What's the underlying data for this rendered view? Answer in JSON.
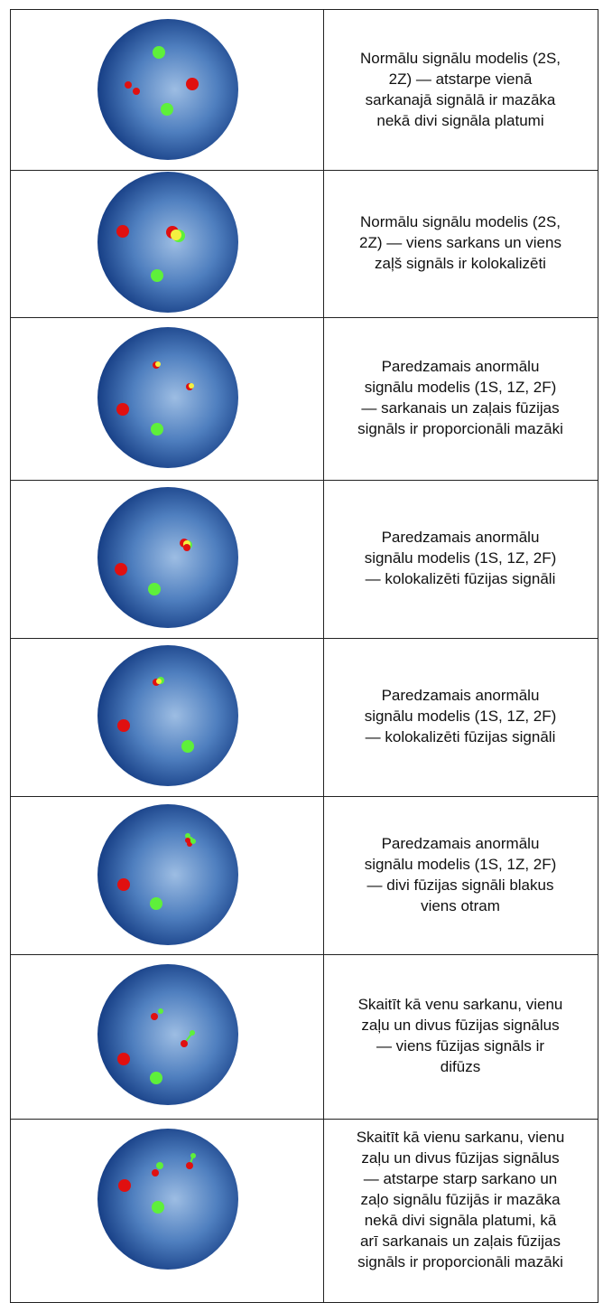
{
  "rows": [
    {
      "lines": [
        "Normālu signālu modelis (2S,",
        "2Z) — atstarpe vienā",
        "sarkanajā signālā ir mazāka",
        "nekā divi signāla platumi"
      ]
    },
    {
      "lines": [
        "Normālu signālu modelis (2S,",
        "2Z) — viens sarkans un viens",
        "zaļš signāls ir kolokalizēti"
      ]
    },
    {
      "lines": [
        "Paredzamais anormālu",
        "signālu modelis (1S, 1Z, 2F)",
        "— sarkanais un zaļais fūzijas",
        "signāls ir proporcionāli mazāki"
      ]
    },
    {
      "lines": [
        "Paredzamais anormālu",
        "signālu modelis (1S, 1Z, 2F)",
        "— kolokalizēti fūzijas signāli"
      ]
    },
    {
      "lines": [
        "Paredzamais anormālu",
        "signālu modelis (1S, 1Z, 2F)",
        "— kolokalizēti fūzijas signāli"
      ]
    },
    {
      "lines": [
        "Paredzamais anormālu",
        "signālu modelis (1S, 1Z, 2F)",
        "— divi fūzijas signāli blakus",
        "viens otram"
      ]
    },
    {
      "lines": [
        "Skaitīt kā venu sarkanu, vienu",
        "zaļu un divus fūzijas signālus",
        "— viens fūzijas signāls ir",
        "difūzs"
      ]
    },
    {
      "lines": [
        "Skaitīt kā vienu sarkanu, vienu",
        "zaļu un divus fūzijas signālus",
        "— atstarpe starp sarkano un",
        "zaļo signālu fūzijās ir mazāka",
        "nekā divi signāla platumi, kā",
        "arī sarkanais un zaļais fūzijas",
        "signāls ir proporcionāli mazāki"
      ]
    }
  ]
}
